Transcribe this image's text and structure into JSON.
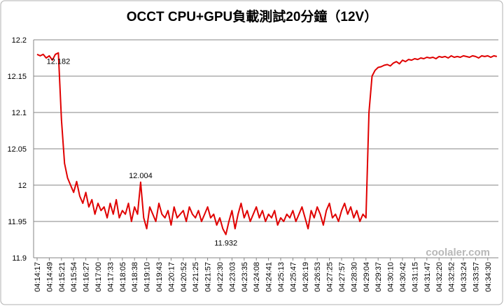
{
  "chart_data": {
    "type": "line",
    "title": "OCCT CPU+GPU負載測試20分鐘（12V）",
    "watermark": "coolaler.com",
    "ylim": [
      11.9,
      12.2
    ],
    "yticks": [
      11.9,
      11.95,
      12,
      12.05,
      12.1,
      12.15,
      12.2
    ],
    "grid": true,
    "categories": [
      "04:14:17",
      null,
      null,
      null,
      "04:14:49",
      null,
      null,
      null,
      "04:15:21",
      null,
      null,
      null,
      "04:15:54",
      null,
      null,
      null,
      "04:16:27",
      null,
      null,
      null,
      "04:17:00",
      null,
      null,
      null,
      "04:17:33",
      null,
      null,
      null,
      "04:18:05",
      null,
      null,
      null,
      "04:18:38",
      null,
      null,
      null,
      "04:19:10",
      null,
      null,
      null,
      "04:19:43",
      null,
      null,
      null,
      "04:20:17",
      null,
      null,
      null,
      "04:20:52",
      null,
      null,
      null,
      "04:21:25",
      null,
      null,
      null,
      "04:21:57",
      null,
      null,
      null,
      "04:22:30",
      null,
      null,
      null,
      "04:23:03",
      null,
      null,
      null,
      "04:23:35",
      null,
      null,
      null,
      "04:24:08",
      null,
      null,
      null,
      "04:24:41",
      null,
      null,
      null,
      "04:25:13",
      null,
      null,
      null,
      "04:25:47",
      null,
      null,
      null,
      "04:26:19",
      null,
      null,
      null,
      "04:26:53",
      null,
      null,
      null,
      "04:27:25",
      null,
      null,
      null,
      "04:27:57",
      null,
      null,
      null,
      "04:28:30",
      null,
      null,
      null,
      "04:29:04",
      null,
      null,
      null,
      "04:29:37",
      null,
      null,
      null,
      "04:30:10",
      null,
      null,
      null,
      "04:30:42",
      null,
      null,
      null,
      "04:31:15",
      null,
      null,
      null,
      "04:31:47",
      null,
      null,
      null,
      "04:32:20",
      null,
      null,
      null,
      "04:32:52",
      null,
      null,
      null,
      "04:33:24",
      null,
      null,
      null,
      "04:33:57",
      null,
      null,
      null,
      "04:34:30",
      null,
      null,
      null
    ],
    "series": [
      {
        "color": "#e00000",
        "values": [
          12.18,
          12.178,
          12.18,
          12.175,
          12.178,
          12.172,
          12.18,
          12.182,
          12.09,
          12.03,
          12.01,
          12.0,
          11.99,
          12.005,
          11.985,
          11.975,
          11.99,
          11.97,
          11.98,
          11.96,
          11.975,
          11.965,
          11.97,
          11.955,
          11.975,
          11.96,
          11.98,
          11.955,
          11.965,
          11.96,
          11.975,
          11.95,
          11.97,
          11.96,
          12.004,
          11.955,
          11.94,
          11.97,
          11.96,
          11.95,
          11.975,
          11.96,
          11.955,
          11.965,
          11.945,
          11.97,
          11.955,
          11.96,
          11.965,
          11.95,
          11.97,
          11.96,
          11.955,
          11.965,
          11.95,
          11.96,
          11.97,
          11.955,
          11.96,
          11.945,
          11.955,
          11.94,
          11.932,
          11.95,
          11.965,
          11.94,
          11.96,
          11.975,
          11.955,
          11.965,
          11.95,
          11.96,
          11.97,
          11.955,
          11.965,
          11.95,
          11.96,
          11.955,
          11.965,
          11.945,
          11.955,
          11.95,
          11.96,
          11.955,
          11.965,
          11.95,
          11.96,
          11.97,
          11.955,
          11.94,
          11.965,
          11.955,
          11.97,
          11.96,
          11.945,
          11.965,
          11.975,
          11.955,
          11.96,
          11.95,
          11.965,
          11.975,
          11.96,
          11.97,
          11.955,
          11.965,
          11.95,
          11.96,
          11.955,
          12.1,
          12.15,
          12.158,
          12.162,
          12.163,
          12.165,
          12.166,
          12.164,
          12.168,
          12.17,
          12.167,
          12.172,
          12.17,
          12.173,
          12.172,
          12.174,
          12.173,
          12.175,
          12.174,
          12.176,
          12.175,
          12.176,
          12.174,
          12.177,
          12.176,
          12.177,
          12.175,
          12.178,
          12.176,
          12.177,
          12.176,
          12.178,
          12.177,
          12.176,
          12.178,
          12.177,
          12.175,
          12.178,
          12.177,
          12.178,
          12.176,
          12.178,
          12.177
        ],
        "value_labels": [
          null,
          null,
          null,
          null,
          null,
          null,
          null,
          "12.182",
          null,
          null,
          null,
          null,
          null,
          null,
          null,
          null,
          null,
          null,
          null,
          null,
          null,
          null,
          null,
          null,
          null,
          null,
          null,
          null,
          null,
          null,
          null,
          null,
          null,
          null,
          "12.004",
          null,
          null,
          null,
          null,
          null,
          null,
          null,
          null,
          null,
          null,
          null,
          null,
          null,
          null,
          null,
          null,
          null,
          null,
          null,
          null,
          null,
          null,
          null,
          null,
          null,
          null,
          null,
          "11.932",
          null,
          null,
          null,
          null,
          null,
          null,
          null,
          null,
          null,
          null,
          null,
          null,
          null,
          null,
          null,
          null,
          null,
          null,
          null,
          null,
          null,
          null,
          null,
          null,
          null,
          null,
          null,
          null,
          null,
          null,
          null,
          null,
          null,
          null,
          null,
          null,
          null,
          null,
          null,
          null,
          null,
          null,
          null,
          null,
          null,
          null,
          null,
          null,
          null,
          null,
          null,
          null,
          null,
          null,
          null,
          null,
          null,
          null,
          null,
          null,
          null,
          null,
          null,
          null,
          null,
          null,
          null,
          null,
          null,
          null,
          null,
          null,
          null,
          null,
          null,
          null,
          null,
          null,
          null,
          null,
          null,
          null,
          null,
          null,
          null,
          null,
          null,
          null,
          null
        ]
      }
    ]
  }
}
